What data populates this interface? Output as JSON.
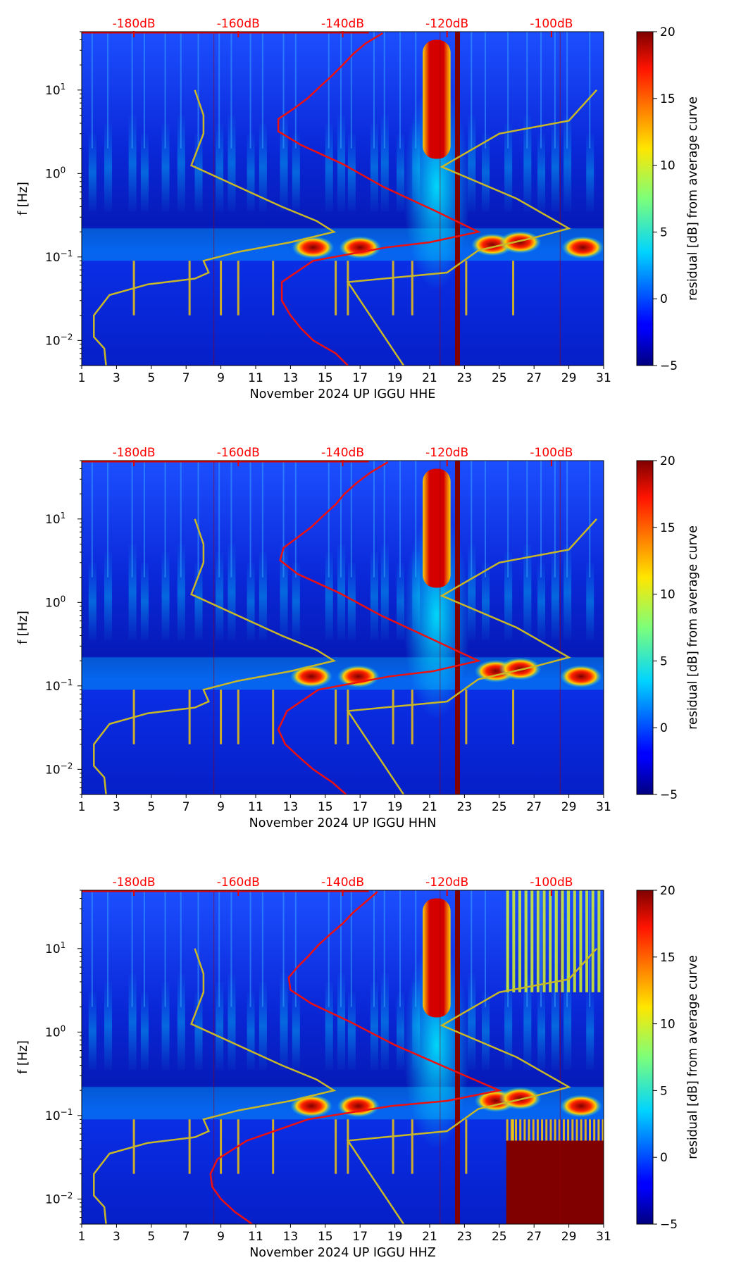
{
  "figure": {
    "panel_count": 3
  },
  "chart_data": [
    {
      "type": "heatmap",
      "channel": "HHE",
      "xlabel": "November 2024 UP IGGU  HHE",
      "ylabel": "f [Hz]",
      "xlim": [
        1,
        31
      ],
      "ylim": [
        0.005,
        50
      ],
      "yscale": "log",
      "xticks": [
        1,
        3,
        5,
        7,
        9,
        11,
        13,
        15,
        17,
        19,
        21,
        23,
        25,
        27,
        29,
        31
      ],
      "yticks": [
        {
          "value": 0.01,
          "base": "10",
          "exp": "−2"
        },
        {
          "value": 0.1,
          "base": "10",
          "exp": "−1"
        },
        {
          "value": 1,
          "base": "10",
          "exp": "0"
        },
        {
          "value": 10,
          "base": "10",
          "exp": "1"
        }
      ],
      "top_ticks": [
        {
          "value": 4,
          "label": "-180dB"
        },
        {
          "value": 10,
          "label": "-160dB"
        },
        {
          "value": 16,
          "label": "-140dB"
        },
        {
          "value": 22,
          "label": "-120dB"
        },
        {
          "value": 28,
          "label": "-100dB"
        }
      ],
      "colorbar": {
        "label": "residual [dB] from average curve",
        "min": -5,
        "max": 20,
        "ticks": [
          -5,
          0,
          5,
          10,
          15,
          20
        ],
        "tick_labels": [
          "−5",
          "0",
          "5",
          "10",
          "15",
          "20"
        ]
      },
      "storm_band": {
        "start": 20.6,
        "end": 22.2,
        "fmin": 1.5,
        "fmax": 40,
        "level": 20
      },
      "marker_line": {
        "x": 22.6,
        "level": 20
      },
      "microseism_peaks": [
        {
          "x": 14.3,
          "f": 0.13
        },
        {
          "x": 17.0,
          "f": 0.13
        },
        {
          "x": 24.6,
          "f": 0.14
        },
        {
          "x": 26.2,
          "f": 0.15
        },
        {
          "x": 29.8,
          "f": 0.13
        }
      ],
      "red_curve": {
        "name": "mean PSD",
        "points": [
          [
            16.3,
            0.005
          ],
          [
            15.6,
            0.007
          ],
          [
            14.3,
            0.01
          ],
          [
            13.6,
            0.014
          ],
          [
            13.0,
            0.02
          ],
          [
            12.5,
            0.03
          ],
          [
            12.5,
            0.05
          ],
          [
            14.3,
            0.09
          ],
          [
            18.5,
            0.13
          ],
          [
            21.0,
            0.15
          ],
          [
            23.8,
            0.2
          ],
          [
            21.4,
            0.35
          ],
          [
            18.3,
            0.7
          ],
          [
            16.0,
            1.3
          ],
          [
            13.6,
            2.2
          ],
          [
            12.3,
            3.2
          ],
          [
            12.3,
            4.5
          ],
          [
            13.2,
            6.0
          ],
          [
            14.0,
            8.0
          ],
          [
            14.7,
            11
          ],
          [
            15.4,
            15
          ],
          [
            16.0,
            20
          ],
          [
            16.6,
            27
          ],
          [
            17.3,
            36
          ],
          [
            18.3,
            48
          ]
        ]
      },
      "olive_curves": [
        {
          "name": "NLNM",
          "points": [
            [
              2.4,
              0.005
            ],
            [
              2.3,
              0.008
            ],
            [
              1.7,
              0.011
            ],
            [
              1.7,
              0.02
            ],
            [
              2.6,
              0.035
            ],
            [
              4.8,
              0.047
            ],
            [
              7.5,
              0.055
            ],
            [
              8.3,
              0.065
            ],
            [
              8.0,
              0.09
            ],
            [
              10.0,
              0.115
            ],
            [
              13.0,
              0.15
            ],
            [
              15.5,
              0.2
            ],
            [
              14.5,
              0.27
            ],
            [
              12.5,
              0.4
            ],
            [
              7.3,
              1.25
            ],
            [
              8.0,
              3.0
            ],
            [
              8.0,
              5.0
            ],
            [
              7.5,
              10
            ]
          ]
        },
        {
          "name": "NHNM",
          "points": [
            [
              19.5,
              0.005
            ],
            [
              16.3,
              0.05
            ],
            [
              22.0,
              0.065
            ],
            [
              23.8,
              0.12
            ],
            [
              27.0,
              0.17
            ],
            [
              29.0,
              0.22
            ],
            [
              26.0,
              0.5
            ],
            [
              21.7,
              1.2
            ],
            [
              25.0,
              3.0
            ],
            [
              29.0,
              4.3
            ],
            [
              30.6,
              10
            ]
          ]
        }
      ]
    },
    {
      "type": "heatmap",
      "channel": "HHN",
      "xlabel": "November 2024 UP IGGU  HHN",
      "ylabel": "f [Hz]",
      "xlim": [
        1,
        31
      ],
      "ylim": [
        0.005,
        50
      ],
      "yscale": "log",
      "xticks": [
        1,
        3,
        5,
        7,
        9,
        11,
        13,
        15,
        17,
        19,
        21,
        23,
        25,
        27,
        29,
        31
      ],
      "yticks": [
        {
          "value": 0.01,
          "base": "10",
          "exp": "−2"
        },
        {
          "value": 0.1,
          "base": "10",
          "exp": "−1"
        },
        {
          "value": 1,
          "base": "10",
          "exp": "0"
        },
        {
          "value": 10,
          "base": "10",
          "exp": "1"
        }
      ],
      "top_ticks": [
        {
          "value": 4,
          "label": "-180dB"
        },
        {
          "value": 10,
          "label": "-160dB"
        },
        {
          "value": 16,
          "label": "-140dB"
        },
        {
          "value": 22,
          "label": "-120dB"
        },
        {
          "value": 28,
          "label": "-100dB"
        }
      ],
      "colorbar": {
        "label": "residual [dB] from average curve",
        "min": -5,
        "max": 20,
        "ticks": [
          -5,
          0,
          5,
          10,
          15,
          20
        ],
        "tick_labels": [
          "−5",
          "0",
          "5",
          "10",
          "15",
          "20"
        ]
      },
      "storm_band": {
        "start": 20.6,
        "end": 22.2,
        "fmin": 1.5,
        "fmax": 40,
        "level": 20
      },
      "marker_line": {
        "x": 22.6,
        "level": 20
      },
      "microseism_peaks": [
        {
          "x": 14.2,
          "f": 0.13
        },
        {
          "x": 16.9,
          "f": 0.13
        },
        {
          "x": 24.8,
          "f": 0.15
        },
        {
          "x": 26.2,
          "f": 0.16
        },
        {
          "x": 29.7,
          "f": 0.13
        }
      ],
      "red_curve": {
        "name": "mean PSD",
        "points": [
          [
            16.2,
            0.005
          ],
          [
            15.4,
            0.007
          ],
          [
            14.3,
            0.01
          ],
          [
            13.5,
            0.014
          ],
          [
            12.7,
            0.02
          ],
          [
            12.3,
            0.03
          ],
          [
            12.8,
            0.05
          ],
          [
            14.6,
            0.09
          ],
          [
            18.7,
            0.13
          ],
          [
            21.2,
            0.15
          ],
          [
            23.8,
            0.2
          ],
          [
            21.3,
            0.35
          ],
          [
            18.2,
            0.7
          ],
          [
            15.8,
            1.3
          ],
          [
            13.4,
            2.2
          ],
          [
            12.4,
            3.2
          ],
          [
            12.6,
            4.5
          ],
          [
            13.4,
            6.0
          ],
          [
            14.2,
            8.0
          ],
          [
            14.9,
            11
          ],
          [
            15.6,
            15
          ],
          [
            16.1,
            20
          ],
          [
            16.8,
            27
          ],
          [
            17.6,
            36
          ],
          [
            18.6,
            48
          ]
        ]
      },
      "olive_curves": [
        {
          "name": "NLNM",
          "points": [
            [
              2.4,
              0.005
            ],
            [
              2.3,
              0.008
            ],
            [
              1.7,
              0.011
            ],
            [
              1.7,
              0.02
            ],
            [
              2.6,
              0.035
            ],
            [
              4.8,
              0.047
            ],
            [
              7.5,
              0.055
            ],
            [
              8.3,
              0.065
            ],
            [
              8.0,
              0.09
            ],
            [
              10.0,
              0.115
            ],
            [
              13.0,
              0.15
            ],
            [
              15.5,
              0.2
            ],
            [
              14.5,
              0.27
            ],
            [
              12.5,
              0.4
            ],
            [
              7.3,
              1.25
            ],
            [
              8.0,
              3.0
            ],
            [
              8.0,
              5.0
            ],
            [
              7.5,
              10
            ]
          ]
        },
        {
          "name": "NHNM",
          "points": [
            [
              19.5,
              0.005
            ],
            [
              16.3,
              0.05
            ],
            [
              22.0,
              0.065
            ],
            [
              23.8,
              0.12
            ],
            [
              27.0,
              0.17
            ],
            [
              29.0,
              0.22
            ],
            [
              26.0,
              0.5
            ],
            [
              21.7,
              1.2
            ],
            [
              25.0,
              3.0
            ],
            [
              29.0,
              4.3
            ],
            [
              30.6,
              10
            ]
          ]
        }
      ]
    },
    {
      "type": "heatmap",
      "channel": "HHZ",
      "xlabel": "November 2024 UP IGGU  HHZ",
      "ylabel": "f [Hz]",
      "xlim": [
        1,
        31
      ],
      "ylim": [
        0.005,
        50
      ],
      "yscale": "log",
      "xticks": [
        1,
        3,
        5,
        7,
        9,
        11,
        13,
        15,
        17,
        19,
        21,
        23,
        25,
        27,
        29,
        31
      ],
      "yticks": [
        {
          "value": 0.01,
          "base": "10",
          "exp": "−2"
        },
        {
          "value": 0.1,
          "base": "10",
          "exp": "−1"
        },
        {
          "value": 1,
          "base": "10",
          "exp": "0"
        },
        {
          "value": 10,
          "base": "10",
          "exp": "1"
        }
      ],
      "top_ticks": [
        {
          "value": 4,
          "label": "-180dB"
        },
        {
          "value": 10,
          "label": "-160dB"
        },
        {
          "value": 16,
          "label": "-140dB"
        },
        {
          "value": 22,
          "label": "-120dB"
        },
        {
          "value": 28,
          "label": "-100dB"
        }
      ],
      "colorbar": {
        "label": "residual [dB] from average curve",
        "min": -5,
        "max": 20,
        "ticks": [
          -5,
          0,
          5,
          10,
          15,
          20
        ],
        "tick_labels": [
          "−5",
          "0",
          "5",
          "10",
          "15",
          "20"
        ]
      },
      "storm_band": {
        "start": 20.6,
        "end": 22.2,
        "fmin": 1.5,
        "fmax": 40,
        "level": 20
      },
      "marker_line": {
        "x": 22.6,
        "level": 20
      },
      "noise_block": {
        "start": 25.4,
        "end": 31,
        "fmin": 0.005,
        "fmax": 0.05,
        "level": 20
      },
      "high_freq_noise": {
        "start": 25.4,
        "end": 31,
        "fmin": 3,
        "fmax": 50,
        "level": 10
      },
      "microseism_peaks": [
        {
          "x": 14.2,
          "f": 0.13
        },
        {
          "x": 16.9,
          "f": 0.13
        },
        {
          "x": 24.8,
          "f": 0.15
        },
        {
          "x": 26.2,
          "f": 0.16
        },
        {
          "x": 29.7,
          "f": 0.13
        }
      ],
      "red_curve": {
        "name": "mean PSD",
        "points": [
          [
            10.8,
            0.005
          ],
          [
            9.8,
            0.007
          ],
          [
            9.0,
            0.01
          ],
          [
            8.5,
            0.014
          ],
          [
            8.4,
            0.02
          ],
          [
            8.8,
            0.03
          ],
          [
            10.5,
            0.05
          ],
          [
            14.0,
            0.09
          ],
          [
            18.8,
            0.13
          ],
          [
            22.0,
            0.15
          ],
          [
            25.0,
            0.2
          ],
          [
            22.3,
            0.35
          ],
          [
            19.0,
            0.7
          ],
          [
            16.5,
            1.3
          ],
          [
            14.2,
            2.2
          ],
          [
            13.0,
            3.2
          ],
          [
            12.9,
            4.5
          ],
          [
            13.4,
            6.0
          ],
          [
            14.0,
            8.0
          ],
          [
            14.6,
            11
          ],
          [
            15.3,
            15
          ],
          [
            16.0,
            20
          ],
          [
            16.6,
            27
          ],
          [
            17.3,
            36
          ],
          [
            18.0,
            48
          ]
        ]
      },
      "olive_curves": [
        {
          "name": "NLNM",
          "points": [
            [
              2.4,
              0.005
            ],
            [
              2.3,
              0.008
            ],
            [
              1.7,
              0.011
            ],
            [
              1.7,
              0.02
            ],
            [
              2.6,
              0.035
            ],
            [
              4.8,
              0.047
            ],
            [
              7.5,
              0.055
            ],
            [
              8.3,
              0.065
            ],
            [
              8.0,
              0.09
            ],
            [
              10.0,
              0.115
            ],
            [
              13.0,
              0.15
            ],
            [
              15.5,
              0.2
            ],
            [
              14.5,
              0.27
            ],
            [
              12.5,
              0.4
            ],
            [
              7.3,
              1.25
            ],
            [
              8.0,
              3.0
            ],
            [
              8.0,
              5.0
            ],
            [
              7.5,
              10
            ]
          ]
        },
        {
          "name": "NHNM",
          "points": [
            [
              19.5,
              0.005
            ],
            [
              16.3,
              0.05
            ],
            [
              22.0,
              0.065
            ],
            [
              23.8,
              0.12
            ],
            [
              27.0,
              0.17
            ],
            [
              29.0,
              0.22
            ],
            [
              26.0,
              0.5
            ],
            [
              21.7,
              1.2
            ],
            [
              25.0,
              3.0
            ],
            [
              29.0,
              4.3
            ],
            [
              30.6,
              10
            ]
          ]
        }
      ]
    }
  ]
}
